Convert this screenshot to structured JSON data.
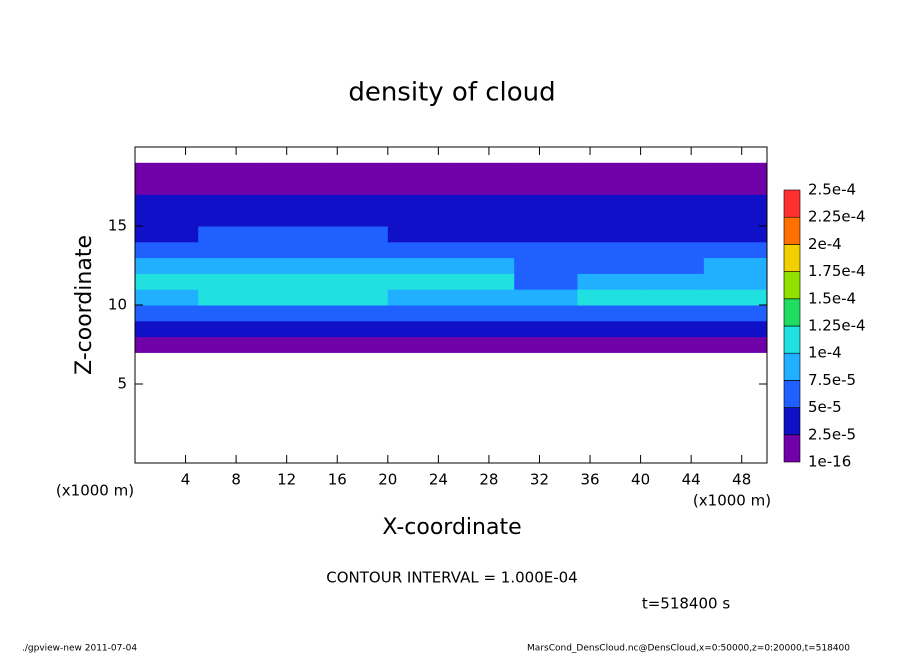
{
  "chart_data": {
    "type": "contour",
    "title": "density of cloud",
    "x_label": "X-coordinate",
    "y_label": "Z-coordinate",
    "x_unit": "(x1000 m)",
    "annotation": "CONTOUR INTERVAL = 1.000E-04",
    "time_label": "t=518400 s",
    "footer_left": "./gpview-new  2011-07-04",
    "footer_right": "MarsCond_DensCloud.nc@DensCloud,x=0:50000,z=0:20000,t=518400",
    "xlim": [
      0,
      50
    ],
    "ylim": [
      0,
      20
    ],
    "xticks": [
      4,
      8,
      12,
      16,
      20,
      24,
      28,
      32,
      36,
      40,
      44,
      48
    ],
    "yticks": [
      5,
      10,
      15
    ],
    "x": [
      2.5,
      7.5,
      12.5,
      17.5,
      22.5,
      27.5,
      32.5,
      37.5,
      42.5,
      47.5
    ],
    "y": [
      7.5,
      8.5,
      9.5,
      10.5,
      11.5,
      12.5,
      13.5,
      14.5,
      15.5,
      16.5,
      17.5,
      18.5
    ],
    "values": [
      [
        1.2e-05,
        1e-05,
        1.1e-05,
        9e-06,
        1e-05,
        1.2e-05,
        1.1e-05,
        1e-05,
        9e-06,
        1e-05
      ],
      [
        2.8e-05,
        3e-05,
        2.7e-05,
        2.9e-05,
        3.1e-05,
        2.8e-05,
        3e-05,
        2.6e-05,
        2.7e-05,
        2.9e-05
      ],
      [
        6.5e-05,
        7e-05,
        7.2e-05,
        6.8e-05,
        7.1e-05,
        6.6e-05,
        6.2e-05,
        6e-05,
        6.4e-05,
        6.3e-05
      ],
      [
        9.5e-05,
        0.000102,
        0.000105,
        0.000103,
        9.8e-05,
        9.6e-05,
        8e-05,
        0.000101,
        0.000103,
        0.000102
      ],
      [
        0.000103,
        0.000106,
        0.000108,
        0.000105,
        0.000104,
        0.0001,
        7e-05,
        8.5e-05,
        8.8e-05,
        9.6e-05
      ],
      [
        8.5e-05,
        8.8e-05,
        9e-05,
        9.2e-05,
        9e-05,
        8.2e-05,
        6e-05,
        6.5e-05,
        7.2e-05,
        7.8e-05
      ],
      [
        6.2e-05,
        6.5e-05,
        6.8e-05,
        6.6e-05,
        6.2e-05,
        5.8e-05,
        5.2e-05,
        5.6e-05,
        6e-05,
        6e-05
      ],
      [
        4.8e-05,
        5e-05,
        5.2e-05,
        5e-05,
        4.5e-05,
        4.6e-05,
        4.4e-05,
        4.7e-05,
        4.8e-05,
        4.6e-05
      ],
      [
        3.8e-05,
        4e-05,
        4.2e-05,
        3.6e-05,
        3.5e-05,
        3.7e-05,
        3.9e-05,
        3.6e-05,
        3.8e-05,
        3.7e-05
      ],
      [
        2.6e-05,
        2.8e-05,
        2.7e-05,
        2.6e-05,
        2.7e-05,
        2.8e-05,
        2.6e-05,
        2.7e-05,
        2.8e-05,
        2.6e-05
      ],
      [
        1.5e-05,
        1.4e-05,
        1.6e-05,
        1.5e-05,
        1.3e-05,
        1.5e-05,
        1.4e-05,
        1.5e-05,
        1.4e-05,
        1.5e-05
      ],
      [
        1e-06,
        2e-06,
        2e-06,
        1e-06,
        1e-06,
        1e-06,
        1e-06,
        1e-06,
        1e-06,
        1e-06
      ]
    ],
    "levels": [
      {
        "value": 1e-16,
        "label": "1e-16"
      },
      {
        "value": 2.5e-05,
        "label": "2.5e-5"
      },
      {
        "value": 5e-05,
        "label": "5e-5"
      },
      {
        "value": 7.5e-05,
        "label": "7.5e-5"
      },
      {
        "value": 0.0001,
        "label": "1e-4"
      },
      {
        "value": 0.000125,
        "label": "1.25e-4"
      },
      {
        "value": 0.00015,
        "label": "1.5e-4"
      },
      {
        "value": 0.000175,
        "label": "1.75e-4"
      },
      {
        "value": 0.0002,
        "label": "2e-4"
      },
      {
        "value": 0.000225,
        "label": "2.25e-4"
      },
      {
        "value": 0.00025,
        "label": "2.5e-4"
      }
    ],
    "colors": [
      "#7000a8",
      "#1010c8",
      "#2060ff",
      "#20b0ff",
      "#20e0e0",
      "#20dc60",
      "#90e000",
      "#f0d000",
      "#ff7000",
      "#ff3030"
    ]
  }
}
